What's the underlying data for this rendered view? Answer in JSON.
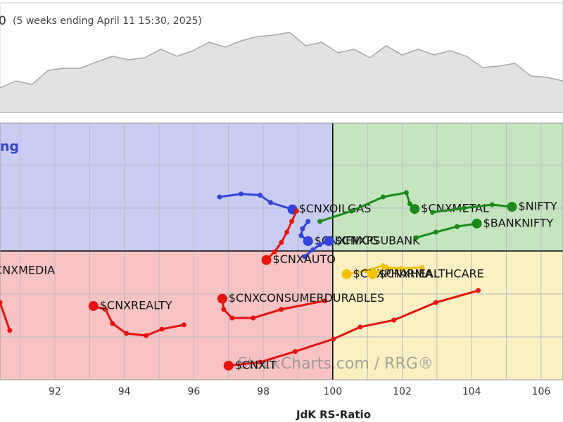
{
  "chart_data": [
    {
      "type": "area",
      "title": "0",
      "subtitle": "(5 weeks ending April 11 15:30, 2025)",
      "color": "#a8a8a8",
      "fill": "#e2e2e2",
      "values": [
        35,
        45,
        40,
        60,
        63,
        63,
        72,
        80,
        75,
        78,
        90,
        80,
        88,
        100,
        93,
        102,
        108,
        110,
        114,
        95,
        100,
        85,
        90,
        78,
        95,
        82,
        90,
        82,
        88,
        80,
        64,
        66,
        70,
        52,
        50,
        45
      ]
    },
    {
      "type": "rrg",
      "xlabel": "JdK RS-Ratio",
      "quadrant_label": "ng",
      "watermark": "StockCharts.com / RRG®",
      "xlim": [
        90.42,
        106.63
      ],
      "ylim": [
        97,
        102.98
      ],
      "xticks": [
        92,
        94,
        96,
        98,
        100,
        102,
        104,
        106
      ],
      "xgrid": [
        91,
        93,
        95,
        97,
        99,
        101,
        103,
        105
      ],
      "ygrid": [
        98,
        99,
        101,
        102
      ],
      "center": [
        100,
        100
      ],
      "quadrant_colors": {
        "improving": "#c9cdf3",
        "leading": "#c5e5bf",
        "weakening": "#fbf0c2",
        "lagging": "#f7c3c3"
      },
      "series": [
        {
          "name": "$CNXOILGAS",
          "color": "#3344dd",
          "x": [
            96.74,
            97.36,
            97.91,
            98.21,
            98.84
          ],
          "y": [
            101.26,
            101.33,
            101.3,
            101.13,
            100.97
          ]
        },
        {
          "name": "$CNXFMCG",
          "color": "#3344dd",
          "x": [
            99.29,
            99.13,
            99.09,
            99.29
          ],
          "y": [
            100.69,
            100.52,
            100.36,
            100.23
          ]
        },
        {
          "name": "$CNXPSUBANK",
          "color": "#3344dd",
          "x": [
            99.19,
            99.43,
            99.63,
            99.89
          ],
          "y": [
            99.87,
            100.03,
            100.15,
            100.23
          ]
        },
        {
          "name": "$CNXAUTO",
          "color": "#e8140f",
          "x": [
            98.96,
            98.82,
            98.68,
            98.52,
            98.32,
            98.09
          ],
          "y": [
            100.93,
            100.69,
            100.44,
            100.2,
            99.98,
            99.79
          ]
        },
        {
          "name": "$CNXMETAL",
          "color": "#1a8a1a",
          "x": [
            99.63,
            100.54,
            101.45,
            102.12,
            102.22,
            102.36
          ],
          "y": [
            100.69,
            100.93,
            101.26,
            101.36,
            101.1,
            100.98
          ]
        },
        {
          "name": "$NIFTY",
          "color": "#1a8a1a",
          "x": [
            102.87,
            103.78,
            104.59,
            105.16
          ],
          "y": [
            100.9,
            101.0,
            101.08,
            101.03
          ]
        },
        {
          "name": "$BANKNIFTY",
          "color": "#1a8a1a",
          "x": [
            102.4,
            102.97,
            103.58,
            104.15
          ],
          "y": [
            100.31,
            100.44,
            100.57,
            100.64
          ]
        },
        {
          "name": "$CNXREALTY",
          "color": "#e8140f",
          "x": [
            95.72,
            95.08,
            94.63,
            94.06,
            93.66,
            93.46,
            93.11
          ],
          "y": [
            98.28,
            98.18,
            98.03,
            98.08,
            98.31,
            98.64,
            98.72
          ]
        },
        {
          "name": "$CNXCONSUMERDURABLES",
          "color": "#e8140f",
          "x": [
            99.77,
            98.52,
            97.71,
            97.1,
            96.86,
            96.82
          ],
          "y": [
            98.84,
            98.64,
            98.44,
            98.44,
            98.64,
            98.89
          ]
        },
        {
          "name": "$CNXIT",
          "color": "#e8140f",
          "x": [
            104.19,
            102.97,
            101.76,
            100.79,
            100.02,
            98.92,
            97.91,
            97.0
          ],
          "y": [
            99.08,
            98.8,
            98.39,
            98.23,
            97.95,
            97.66,
            97.41,
            97.33
          ]
        },
        {
          "name": "$CNXPHARMA",
          "color": "#f0c20a",
          "x": [
            101.45,
            100.95,
            100.4
          ],
          "y": [
            99.66,
            99.54,
            99.46
          ]
        },
        {
          "name": "$CNXHEALTHCARE",
          "color": "#f0c20a",
          "x": [
            102.57,
            101.96,
            101.55,
            101.15
          ],
          "y": [
            99.62,
            99.59,
            99.62,
            99.46
          ]
        },
        {
          "name": "$CNXMEDIA",
          "color": "#e8140f",
          "x": [
            90.7,
            90.42,
            89.87
          ],
          "y": [
            98.15,
            98.8,
            99.54
          ]
        }
      ]
    }
  ]
}
